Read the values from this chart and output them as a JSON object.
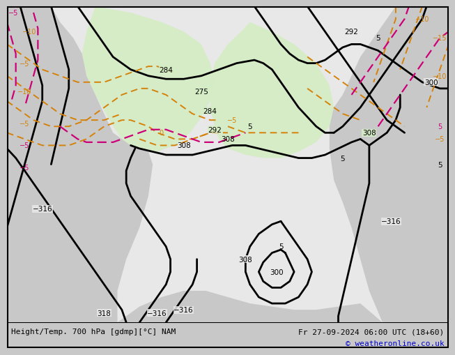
{
  "title_left": "Height/Temp. 700 hPa [gdmp][°C] NAM",
  "title_right": "Fr 27-09-2024 06:00 UTC (18+60)",
  "copyright": "© weatheronline.co.uk",
  "bg_color": "#c8c8c8",
  "map_white": "#f0f0f0",
  "green_fill": "#d4edc4",
  "gray_land": "#b8b8b8",
  "fig_width": 6.34,
  "fig_height": 4.9
}
